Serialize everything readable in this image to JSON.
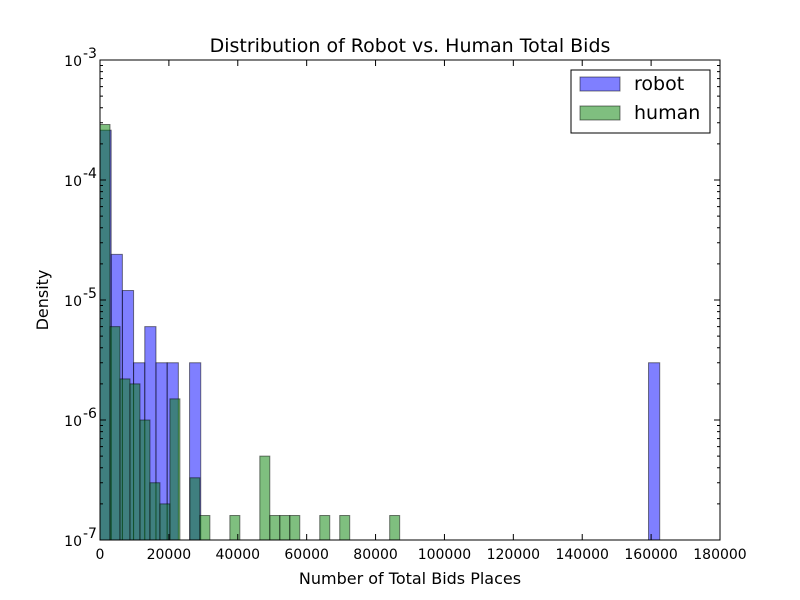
{
  "chart_data": {
    "type": "bar",
    "title": "Distribution of Robot vs. Human Total Bids",
    "xlabel": "Number of Total Bids Places",
    "ylabel": "Density",
    "xlim": [
      0,
      180000
    ],
    "ylim": [
      1e-07,
      0.001
    ],
    "yscale": "log",
    "x_ticks": [
      0,
      20000,
      40000,
      60000,
      80000,
      100000,
      120000,
      140000,
      160000,
      180000
    ],
    "x_tick_labels": [
      "0",
      "20000",
      "40000",
      "60000",
      "80000",
      "100000",
      "120000",
      "140000",
      "160000",
      "180000"
    ],
    "y_ticks": [
      {
        "value": 1e-07,
        "base": "10",
        "exp": "-7"
      },
      {
        "value": 1e-06,
        "base": "10",
        "exp": "-6"
      },
      {
        "value": 1e-05,
        "base": "10",
        "exp": "-5"
      },
      {
        "value": 0.0001,
        "base": "10",
        "exp": "-4"
      },
      {
        "value": 0.001,
        "base": "10",
        "exp": "-3"
      }
    ],
    "grid": false,
    "legend_position": "top-right",
    "series": [
      {
        "name": "robot",
        "color": "#0000ff",
        "bins": [
          {
            "x0": 0,
            "x1": 3250,
            "y": 0.00026
          },
          {
            "x0": 3250,
            "x1": 6500,
            "y": 2.4e-05
          },
          {
            "x0": 6500,
            "x1": 9750,
            "y": 1.2e-05
          },
          {
            "x0": 9750,
            "x1": 13000,
            "y": 3e-06
          },
          {
            "x0": 13000,
            "x1": 16250,
            "y": 6e-06
          },
          {
            "x0": 16250,
            "x1": 19500,
            "y": 3e-06
          },
          {
            "x0": 19500,
            "x1": 22750,
            "y": 3e-06
          },
          {
            "x0": 26000,
            "x1": 29250,
            "y": 3e-06
          },
          {
            "x0": 159250,
            "x1": 162500,
            "y": 3e-06
          }
        ]
      },
      {
        "name": "human",
        "color": "#008000",
        "bins": [
          {
            "x0": 0,
            "x1": 2900,
            "y": 0.00029
          },
          {
            "x0": 2900,
            "x1": 5800,
            "y": 6e-06
          },
          {
            "x0": 5800,
            "x1": 8700,
            "y": 2.2e-06
          },
          {
            "x0": 8700,
            "x1": 11600,
            "y": 2e-06
          },
          {
            "x0": 11600,
            "x1": 14500,
            "y": 1e-06
          },
          {
            "x0": 14500,
            "x1": 17400,
            "y": 3e-07
          },
          {
            "x0": 17400,
            "x1": 20300,
            "y": 2e-07
          },
          {
            "x0": 20300,
            "x1": 23200,
            "y": 1.5e-06
          },
          {
            "x0": 26100,
            "x1": 29000,
            "y": 3.3e-07
          },
          {
            "x0": 29000,
            "x1": 31900,
            "y": 1.6e-07
          },
          {
            "x0": 37700,
            "x1": 40600,
            "y": 1.6e-07
          },
          {
            "x0": 46400,
            "x1": 49300,
            "y": 5e-07
          },
          {
            "x0": 49300,
            "x1": 52200,
            "y": 1.6e-07
          },
          {
            "x0": 52200,
            "x1": 55100,
            "y": 1.6e-07
          },
          {
            "x0": 55100,
            "x1": 58000,
            "y": 1.6e-07
          },
          {
            "x0": 63800,
            "x1": 66700,
            "y": 1.6e-07
          },
          {
            "x0": 69600,
            "x1": 72500,
            "y": 1.6e-07
          },
          {
            "x0": 84100,
            "x1": 87000,
            "y": 1.6e-07
          }
        ]
      }
    ]
  }
}
